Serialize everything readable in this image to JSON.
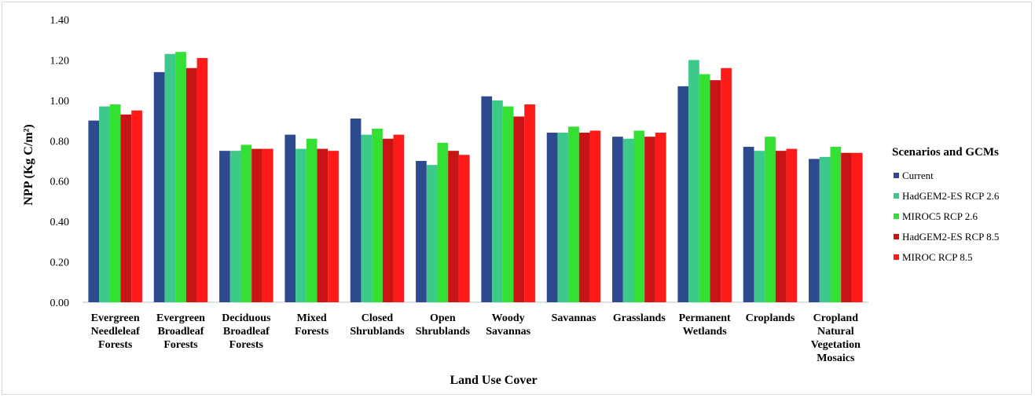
{
  "chart_data": {
    "type": "bar",
    "xlabel": "Land Use Cover",
    "ylabel": "NPP (Kg C/m²)",
    "ylim": [
      0,
      1.4
    ],
    "yticks": [
      "0.00",
      "0.20",
      "0.40",
      "0.60",
      "0.80",
      "1.00",
      "1.20",
      "1.40"
    ],
    "grid": false,
    "legend_title": "Scenarios and GCMs",
    "legend_position": "right",
    "categories": [
      [
        "Evergreen",
        "Needleleaf",
        "Forests"
      ],
      [
        "Evergreen",
        "Broadleaf",
        "Forests"
      ],
      [
        "Deciduous",
        "Broadleaf",
        "Forests"
      ],
      [
        "Mixed",
        "Forests"
      ],
      [
        "Closed",
        "Shrublands"
      ],
      [
        "Open",
        "Shrublands"
      ],
      [
        "Woody",
        "Savannas"
      ],
      [
        "Savannas"
      ],
      [
        "Grasslands"
      ],
      [
        "Permanent",
        "Wetlands"
      ],
      [
        "Croplands"
      ],
      [
        "Cropland",
        "Natural",
        "Vegetation",
        "Mosaics"
      ]
    ],
    "series": [
      {
        "name": "Current",
        "color": "#2e4a8f",
        "values": [
          0.9,
          1.14,
          0.75,
          0.83,
          0.91,
          0.7,
          1.02,
          0.84,
          0.82,
          1.07,
          0.77,
          0.71
        ]
      },
      {
        "name": "HadGEM2-ES  RCP 2.6",
        "color": "#3cc98a",
        "values": [
          0.97,
          1.23,
          0.75,
          0.76,
          0.83,
          0.68,
          1.0,
          0.84,
          0.81,
          1.2,
          0.75,
          0.72
        ]
      },
      {
        "name": "MIROC5 RCP 2.6",
        "color": "#33e033",
        "values": [
          0.98,
          1.24,
          0.78,
          0.81,
          0.86,
          0.79,
          0.97,
          0.87,
          0.85,
          1.13,
          0.82,
          0.77
        ]
      },
      {
        "name": "HadGEM2-ES  RCP 8.5",
        "color": "#c81414",
        "values": [
          0.93,
          1.16,
          0.76,
          0.76,
          0.81,
          0.75,
          0.92,
          0.84,
          0.82,
          1.1,
          0.75,
          0.74
        ]
      },
      {
        "name": "MIROC RCP 8.5",
        "color": "#ff1a1a",
        "values": [
          0.95,
          1.21,
          0.76,
          0.75,
          0.83,
          0.73,
          0.98,
          0.85,
          0.84,
          1.16,
          0.76,
          0.74
        ]
      }
    ]
  }
}
